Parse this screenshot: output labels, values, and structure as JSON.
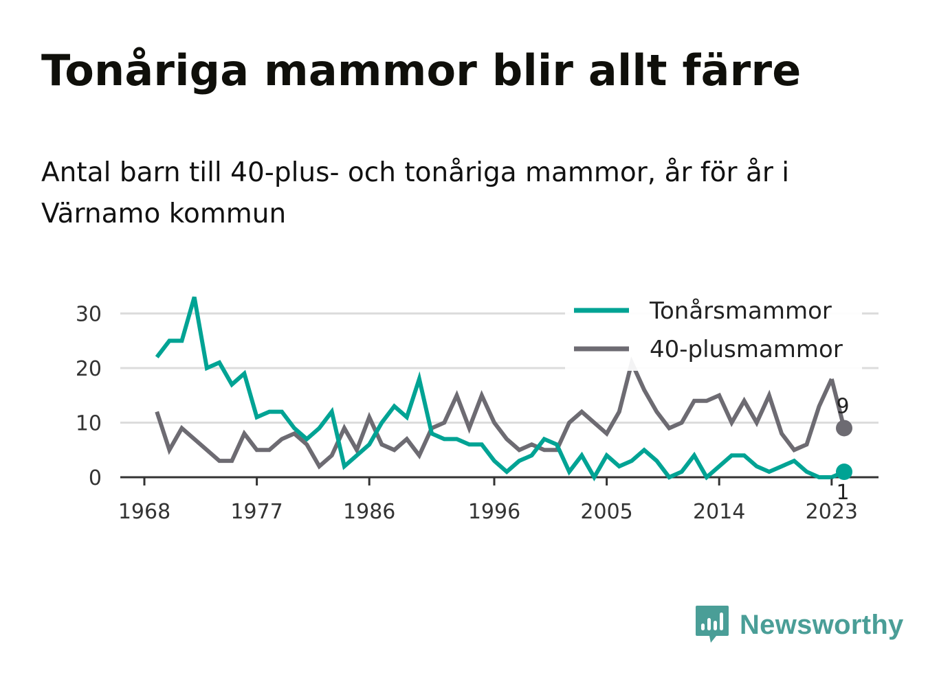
{
  "title": "Tonåriga mammor blir allt färre",
  "subtitle": "Antal barn till 40-plus- och tonåriga mammor, år för år i Värnamo kommun",
  "brand": "Newsworthy",
  "colors": {
    "teen": "#00a394",
    "forty": "#6d6b72",
    "grid": "#dcdcdc",
    "axis": "#333333",
    "brand": "#4a9e97"
  },
  "chart_data": {
    "type": "line",
    "x": [
      1969,
      1970,
      1971,
      1972,
      1973,
      1974,
      1975,
      1976,
      1977,
      1978,
      1979,
      1980,
      1981,
      1982,
      1983,
      1984,
      1985,
      1986,
      1987,
      1988,
      1989,
      1990,
      1991,
      1992,
      1993,
      1994,
      1995,
      1996,
      1997,
      1998,
      1999,
      2000,
      2001,
      2002,
      2003,
      2004,
      2005,
      2006,
      2007,
      2008,
      2009,
      2010,
      2011,
      2012,
      2013,
      2014,
      2015,
      2016,
      2017,
      2018,
      2019,
      2020,
      2021,
      2022,
      2023
    ],
    "series": [
      {
        "name": "Tonårsmammor",
        "color": "#00a394",
        "values": [
          22,
          25,
          25,
          33,
          20,
          21,
          17,
          19,
          11,
          12,
          12,
          9,
          7,
          9,
          12,
          2,
          4,
          6,
          10,
          13,
          11,
          18,
          8,
          7,
          7,
          6,
          6,
          3,
          1,
          3,
          4,
          7,
          6,
          1,
          4,
          0,
          4,
          2,
          3,
          5,
          3,
          0,
          1,
          4,
          0,
          2,
          4,
          4,
          2,
          1,
          2,
          3,
          1,
          0,
          0
        ]
      },
      {
        "name": "40-plusmammor",
        "color": "#6d6b72",
        "values": [
          12,
          5,
          9,
          7,
          5,
          3,
          3,
          8,
          5,
          5,
          7,
          8,
          6,
          2,
          4,
          9,
          5,
          11,
          6,
          5,
          7,
          4,
          9,
          10,
          15,
          9,
          15,
          10,
          7,
          5,
          6,
          5,
          5,
          10,
          12,
          10,
          8,
          12,
          21,
          16,
          12,
          9,
          10,
          14,
          14,
          15,
          10,
          14,
          10,
          15,
          8,
          5,
          6,
          13,
          18
        ]
      }
    ],
    "end_points": [
      {
        "series": "40-plusmammor",
        "x": 2024,
        "y": 9,
        "label": "9"
      },
      {
        "series": "Tonårsmammor",
        "x": 2024,
        "y": 1,
        "label": "1"
      }
    ],
    "x_ticks": [
      1968,
      1977,
      1986,
      1996,
      2005,
      2014,
      2023
    ],
    "y_ticks": [
      0,
      10,
      20,
      30
    ],
    "xlim": [
      1968,
      2024
    ],
    "ylim": [
      0,
      33
    ],
    "grid": "horizontal",
    "legend": "top-right"
  }
}
